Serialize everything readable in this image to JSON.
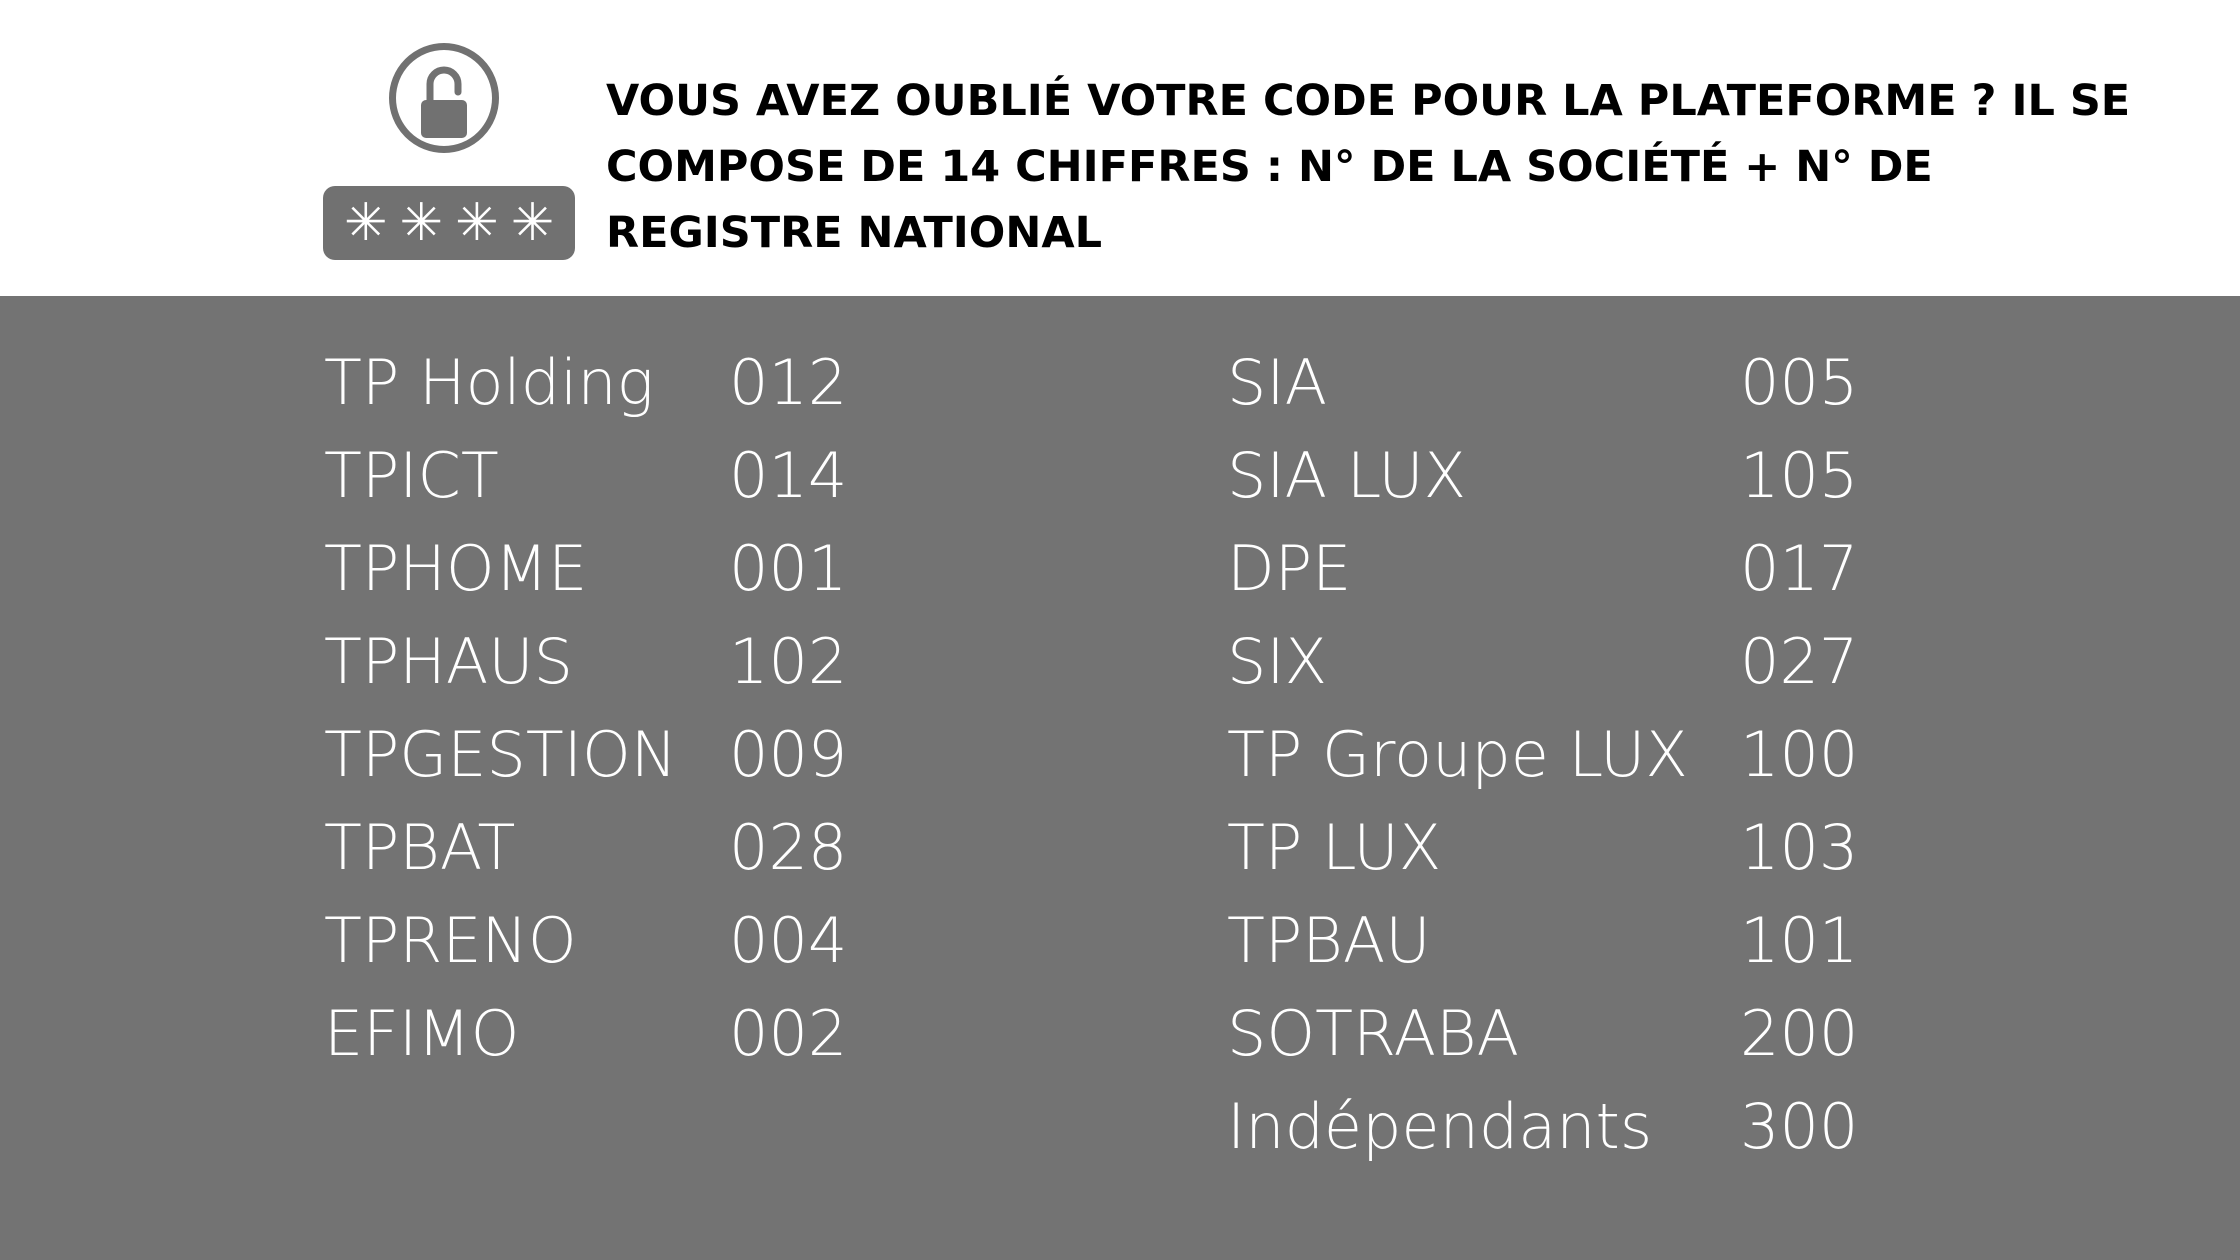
{
  "header": {
    "title": "VOUS AVEZ OUBLIÉ VOTRE CODE POUR LA PLATEFORME ? IL SE COMPOSE DE 14 CHIFFRES : N° DE LA SOCIÉTÉ + N° DE REGISTRE NATIONAL",
    "icon": "lock-password-icon",
    "password_mask": [
      "✳",
      "✳",
      "✳",
      "✳"
    ]
  },
  "colors": {
    "panel_background": "#737373",
    "icon_gray": "#717171",
    "title_text": "#000000",
    "list_text": "#ffffff"
  },
  "left_column": [
    {
      "name": "TP Holding",
      "code": "012"
    },
    {
      "name": "TPICT",
      "code": "014"
    },
    {
      "name": "TPHOME",
      "code": "001"
    },
    {
      "name": "TPHAUS",
      "code": "102"
    },
    {
      "name": "TPGESTION",
      "code": "009"
    },
    {
      "name": "TPBAT",
      "code": "028"
    },
    {
      "name": "TPRENO",
      "code": "004"
    },
    {
      "name": "EFIMO",
      "code": "002"
    }
  ],
  "right_column": [
    {
      "name": "SIA",
      "code": "005"
    },
    {
      "name": "SIA LUX",
      "code": "105"
    },
    {
      "name": "DPE",
      "code": "017"
    },
    {
      "name": "SIX",
      "code": "027"
    },
    {
      "name": "TP Groupe LUX",
      "code": "100"
    },
    {
      "name": "TP LUX",
      "code": "103"
    },
    {
      "name": "TPBAU",
      "code": "101"
    },
    {
      "name": "SOTRABA",
      "code": "200"
    },
    {
      "name": "Indépendants",
      "code": "300"
    }
  ]
}
